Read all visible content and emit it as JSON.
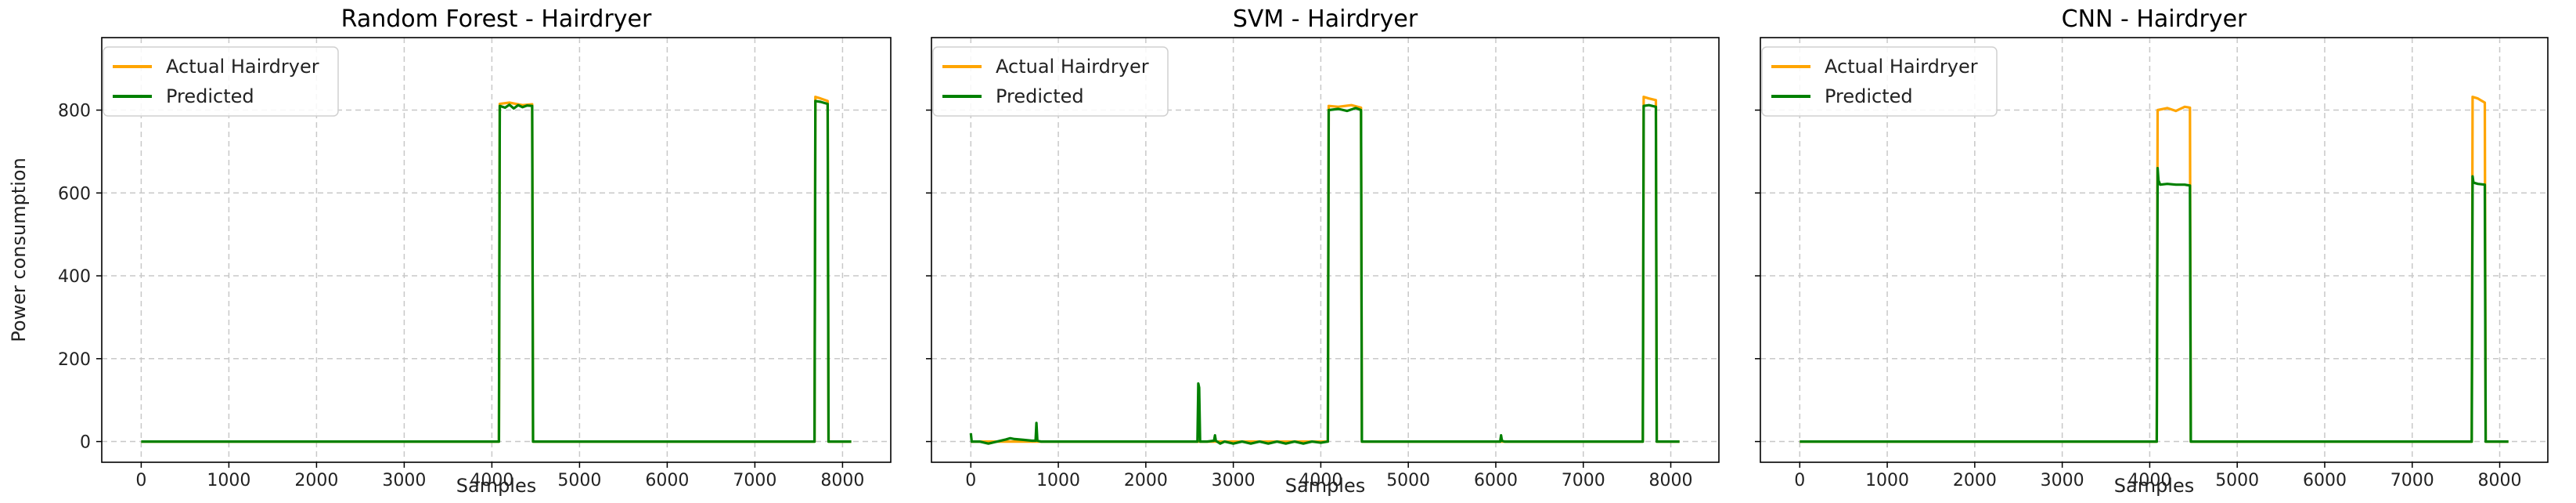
{
  "figure": {
    "background": "#ffffff",
    "grid_color": "#c8c8c8",
    "colors": {
      "actual": "#FFA500",
      "predicted": "#008000"
    }
  },
  "chart_data": [
    {
      "type": "line",
      "title": "Random Forest - Hairdryer",
      "xlabel": "Samples",
      "ylabel": "Power consumption",
      "xlim": [
        -450,
        8550
      ],
      "ylim": [
        -50,
        975
      ],
      "xticks": [
        0,
        1000,
        2000,
        3000,
        4000,
        5000,
        6000,
        7000,
        8000
      ],
      "yticks": [
        0,
        200,
        400,
        600,
        800
      ],
      "grid": true,
      "legend": "top-left",
      "series": [
        {
          "name": "Actual Hairdryer",
          "color": "#FFA500",
          "x": [
            0,
            4080,
            4090,
            4200,
            4350,
            4460,
            4470,
            7680,
            7690,
            7750,
            7830,
            7840,
            8100
          ],
          "y": [
            0,
            0,
            815,
            818,
            812,
            814,
            0,
            0,
            832,
            828,
            822,
            0,
            0
          ]
        },
        {
          "name": "Predicted",
          "color": "#008000",
          "x": [
            0,
            4080,
            4090,
            4150,
            4200,
            4250,
            4300,
            4350,
            4400,
            4460,
            4470,
            7680,
            7690,
            7750,
            7830,
            7840,
            8100
          ],
          "y": [
            0,
            0,
            810,
            806,
            813,
            804,
            812,
            807,
            811,
            810,
            0,
            0,
            822,
            820,
            815,
            0,
            0
          ]
        }
      ]
    },
    {
      "type": "line",
      "title": "SVM - Hairdryer",
      "xlabel": "Samples",
      "ylabel": "",
      "xlim": [
        -450,
        8550
      ],
      "ylim": [
        -50,
        975
      ],
      "xticks": [
        0,
        1000,
        2000,
        3000,
        4000,
        5000,
        6000,
        7000,
        8000
      ],
      "yticks": [
        0,
        200,
        400,
        600,
        800
      ],
      "grid": true,
      "legend": "top-left",
      "series": [
        {
          "name": "Actual Hairdryer",
          "color": "#FFA500",
          "x": [
            0,
            4080,
            4090,
            4200,
            4350,
            4460,
            4470,
            7680,
            7690,
            7750,
            7830,
            7840,
            8100
          ],
          "y": [
            0,
            0,
            810,
            808,
            812,
            806,
            0,
            0,
            832,
            828,
            824,
            0,
            0
          ]
        },
        {
          "name": "Predicted",
          "color": "#008000",
          "x": [
            0,
            10,
            20,
            100,
            200,
            300,
            400,
            450,
            500,
            600,
            700,
            740,
            750,
            760,
            800,
            1000,
            1500,
            2000,
            2500,
            2590,
            2600,
            2610,
            2620,
            2700,
            2780,
            2790,
            2800,
            2850,
            2900,
            3000,
            3100,
            3200,
            3300,
            3400,
            3500,
            3600,
            3700,
            3800,
            3900,
            4000,
            4080,
            4090,
            4200,
            4300,
            4400,
            4460,
            4470,
            5000,
            6000,
            6050,
            6060,
            6070,
            6100,
            7000,
            7680,
            7690,
            7750,
            7830,
            7840,
            8100
          ],
          "y": [
            20,
            0,
            0,
            0,
            -5,
            0,
            5,
            8,
            6,
            4,
            2,
            2,
            45,
            2,
            0,
            0,
            0,
            0,
            0,
            0,
            140,
            130,
            0,
            0,
            2,
            15,
            2,
            -5,
            0,
            -5,
            0,
            -5,
            0,
            -5,
            0,
            -5,
            0,
            -5,
            0,
            -3,
            0,
            800,
            803,
            798,
            805,
            800,
            0,
            0,
            0,
            0,
            15,
            2,
            0,
            0,
            0,
            810,
            812,
            808,
            0,
            0
          ]
        }
      ]
    },
    {
      "type": "line",
      "title": "CNN - Hairdryer",
      "xlabel": "Samples",
      "ylabel": "",
      "xlim": [
        -450,
        8550
      ],
      "ylim": [
        -50,
        975
      ],
      "xticks": [
        0,
        1000,
        2000,
        3000,
        4000,
        5000,
        6000,
        7000,
        8000
      ],
      "yticks": [
        0,
        200,
        400,
        600,
        800
      ],
      "grid": true,
      "legend": "top-left",
      "series": [
        {
          "name": "Actual Hairdryer",
          "color": "#FFA500",
          "x": [
            0,
            4080,
            4090,
            4200,
            4300,
            4400,
            4460,
            4470,
            7680,
            7690,
            7750,
            7830,
            7840,
            8100
          ],
          "y": [
            0,
            0,
            800,
            805,
            798,
            808,
            806,
            0,
            0,
            832,
            828,
            818,
            0,
            0
          ]
        },
        {
          "name": "Predicted",
          "color": "#008000",
          "x": [
            0,
            4080,
            4090,
            4100,
            4120,
            4200,
            4300,
            4400,
            4460,
            4470,
            7680,
            7690,
            7700,
            7750,
            7830,
            7840,
            8100
          ],
          "y": [
            0,
            0,
            660,
            630,
            620,
            622,
            620,
            620,
            618,
            0,
            0,
            640,
            625,
            622,
            620,
            0,
            0
          ]
        }
      ]
    }
  ]
}
